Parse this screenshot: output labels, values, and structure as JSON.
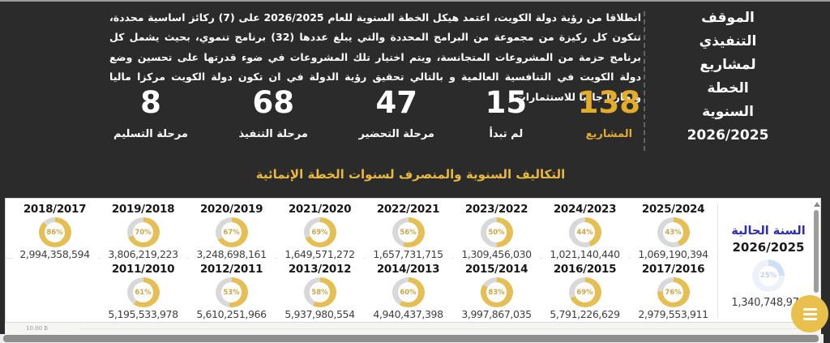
{
  "header": {
    "sidebar_title_lines": [
      "الموقف",
      "التنفيذي",
      "لمشاريع",
      "الخطة",
      "السنوية",
      "2026/2025"
    ],
    "paragraph": "انطلاقا من رؤية دولة الكويت، اعتمد هيكل الخطة السنوية للعام 2026/2025 على (7) ركائز اساسية محددة، تتكون كل ركيزة من مجموعة من البرامج المحددة والتي يبلغ عددها (32) برنامج تنموي، بحيث يشمل كل برنامج حزمة من المشروعات المتجانسة، ويتم اختيار تلك المشروعات في ضوء قدرتها على تحسين وضع دولة الكويت في التنافسية العالمية و بالتالي تحقيق رؤية الدولة في ان تكون دولة الكويت مركزا ماليا وتجاريا جاذبا للاستثمارات .",
    "stats": [
      {
        "value": "138",
        "label": "المشاريع",
        "emphasis": true
      },
      {
        "value": "15",
        "label": "لم تبدأ"
      },
      {
        "value": "47",
        "label": "مرحلة التحضير"
      },
      {
        "value": "68",
        "label": "مرحلة التنفيذ"
      },
      {
        "value": "8",
        "label": "مرحلة التسليم"
      }
    ]
  },
  "chart_data": {
    "type": "donut-kpi-grid",
    "title": "التكاليف السنوية والمنصرف لسنوات الخطة الإنمائية",
    "layout": "rtl-wrap, 8 gauges first row, 7 second row, newest year at top-right",
    "axis_label": "10.00 B",
    "years_display_rtl": [
      {
        "year": "2025/2024",
        "percent": 43,
        "percent_label": "43%",
        "value": "1,069,190,394"
      },
      {
        "year": "2024/2023",
        "percent": 44,
        "percent_label": "44%",
        "value": "1,021,140,440"
      },
      {
        "year": "2023/2022",
        "percent": 50,
        "percent_label": "50%",
        "value": "1,309,456,030"
      },
      {
        "year": "2022/2021",
        "percent": 56,
        "percent_label": "56%",
        "value": "1,657,731,715"
      },
      {
        "year": "2021/2020",
        "percent": 69,
        "percent_label": "69%",
        "value": "1,649,571,272"
      },
      {
        "year": "2020/2019",
        "percent": 67,
        "percent_label": "67%",
        "value": "3,248,698,161"
      },
      {
        "year": "2019/2018",
        "percent": 70,
        "percent_label": "70%",
        "value": "3,806,219,223"
      },
      {
        "year": "2018/2017",
        "percent": 86,
        "percent_label": "86%",
        "value": "2,994,358,594"
      },
      {
        "year": "2017/2016",
        "percent": 76,
        "percent_label": "76%",
        "value": "2,979,553,911"
      },
      {
        "year": "2016/2015",
        "percent": 69,
        "percent_label": "69%",
        "value": "5,791,226,629"
      },
      {
        "year": "2015/2014",
        "percent": 83,
        "percent_label": "83%",
        "value": "3,997,867,035"
      },
      {
        "year": "2014/2013",
        "percent": 60,
        "percent_label": "60%",
        "value": "4,940,437,398"
      },
      {
        "year": "2013/2012",
        "percent": 58,
        "percent_label": "58%",
        "value": "5,937,980,554"
      },
      {
        "year": "2012/2011",
        "percent": 53,
        "percent_label": "53%",
        "value": "5,610,251,966"
      },
      {
        "year": "2011/2010",
        "percent": 61,
        "percent_label": "61%",
        "value": "5,195,533,978"
      }
    ],
    "current_year": {
      "label": "السنة الحالية",
      "year": "2026/2025",
      "percent": 25,
      "percent_label": "25%",
      "value": "1,340,748,979"
    }
  },
  "colors": {
    "background_dark": "#2b2b2b",
    "accent_gold": "#e4ac28",
    "title_gold": "#e8b93c",
    "donut_fill": "#e5be54",
    "donut_track": "#d8d8d8",
    "current_fill": "#cfe0f5",
    "current_track": "#edf2f8",
    "current_label_blue": "#2b2bbd"
  }
}
